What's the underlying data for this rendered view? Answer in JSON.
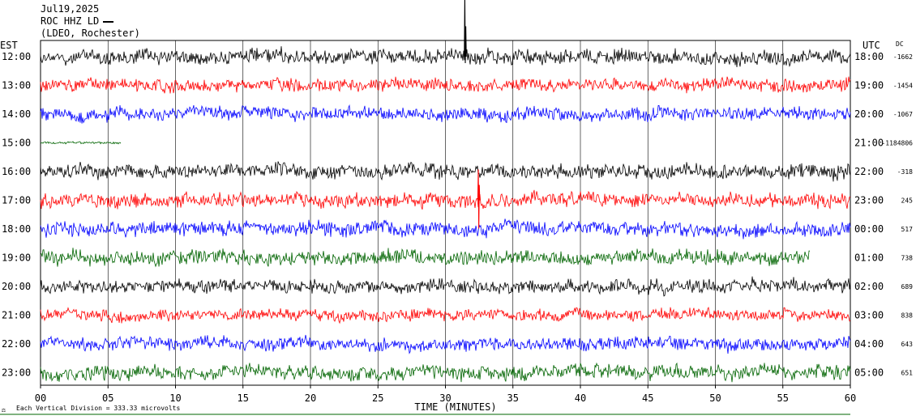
{
  "header": {
    "date": "Jul19,2025",
    "station": "ROC HHZ LD",
    "network": "(LDEO, Rochester)"
  },
  "chart_data": {
    "type": "line",
    "title": "",
    "left_timezone_label": "EST",
    "right_timezone_label": "UTC",
    "dc_header": "DC",
    "xlabel": "TIME (MINUTES)",
    "xlim": [
      0,
      60
    ],
    "x_ticks": [
      "00",
      "05",
      "10",
      "15",
      "20",
      "25",
      "30",
      "35",
      "40",
      "45",
      "50",
      "55",
      "60"
    ],
    "vertical_grid_step_minutes": 5,
    "footer_note": "Each Vertical Division = 333.33 microvolts",
    "footer_glyph": "⚖",
    "trace_colors": [
      "#000000",
      "#ff0000",
      "#0000ff",
      "#006400"
    ],
    "rows": [
      {
        "est": "12:00",
        "utc": "18:00",
        "dc": "-1662",
        "color": "#000000",
        "amp": 1.0,
        "start": 0,
        "end": 60
      },
      {
        "est": "13:00",
        "utc": "19:00",
        "dc": "-1454",
        "color": "#ff0000",
        "amp": 0.9,
        "start": 0,
        "end": 60
      },
      {
        "est": "14:00",
        "utc": "20:00",
        "dc": "-1067",
        "color": "#0000ff",
        "amp": 0.9,
        "start": 0,
        "end": 60
      },
      {
        "est": "15:00",
        "utc": "21:00",
        "dc": "-1184806",
        "color": "#006400",
        "amp": 0.15,
        "start": 0,
        "end": 6
      },
      {
        "est": "16:00",
        "utc": "22:00",
        "dc": "-318",
        "color": "#000000",
        "amp": 1.0,
        "start": 0,
        "end": 60
      },
      {
        "est": "17:00",
        "utc": "23:00",
        "dc": "245",
        "color": "#ff0000",
        "amp": 1.0,
        "start": 0,
        "end": 60
      },
      {
        "est": "18:00",
        "utc": "00:00",
        "dc": "517",
        "color": "#0000ff",
        "amp": 1.0,
        "start": 0,
        "end": 60
      },
      {
        "est": "19:00",
        "utc": "01:00",
        "dc": "738",
        "color": "#006400",
        "amp": 1.0,
        "start": 0,
        "end": 57
      },
      {
        "est": "20:00",
        "utc": "02:00",
        "dc": "689",
        "color": "#000000",
        "amp": 0.9,
        "start": 0,
        "end": 60
      },
      {
        "est": "21:00",
        "utc": "03:00",
        "dc": "838",
        "color": "#ff0000",
        "amp": 0.8,
        "start": 0,
        "end": 60
      },
      {
        "est": "22:00",
        "utc": "04:00",
        "dc": "643",
        "color": "#0000ff",
        "amp": 0.9,
        "start": 0,
        "end": 60
      },
      {
        "est": "23:00",
        "utc": "05:00",
        "dc": "651",
        "color": "#006400",
        "amp": 1.0,
        "start": 0,
        "end": 60
      }
    ],
    "events": [
      {
        "row": 0,
        "minute": 31.4,
        "description": "large upward spike"
      },
      {
        "row": 5,
        "minute": 32.4,
        "description": "large spike"
      }
    ]
  }
}
